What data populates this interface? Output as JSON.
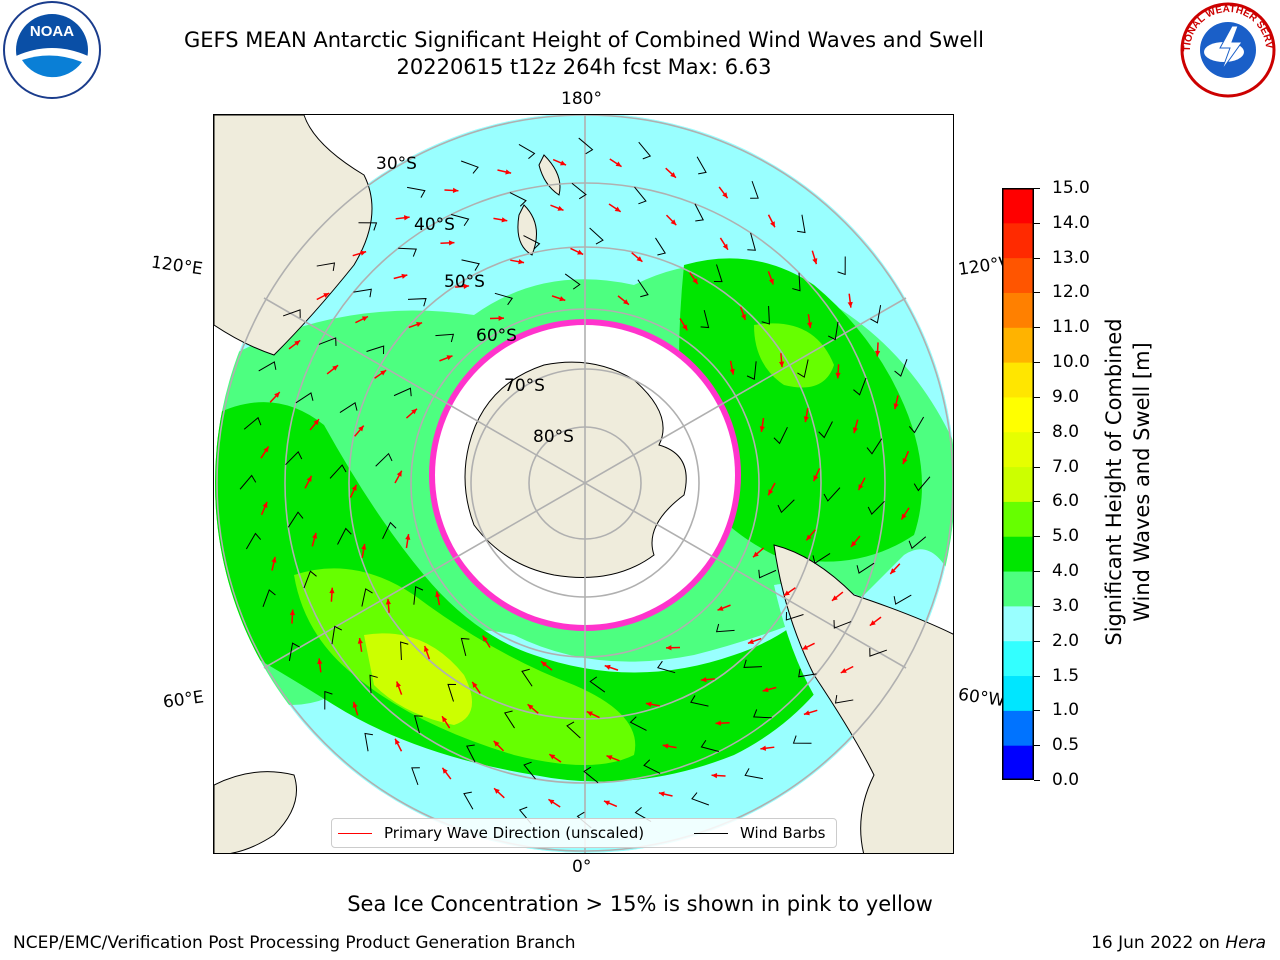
{
  "header": {
    "title_line1": "GEFS MEAN Antarctic Significant Height of Combined Wind Waves and Swell",
    "title_line2": "20220615 t12z 264h fcst   Max: 6.63"
  },
  "logos": {
    "left": "NOAA",
    "right": "NATIONAL WEATHER SERVICE"
  },
  "map": {
    "projection": "south-polar-stereographic",
    "longitude_labels": {
      "top": "180°",
      "bottom": "0°",
      "left_upper": "120°E",
      "left_lower": "60°E",
      "right_upper": "120°W",
      "right_lower": "60°W"
    },
    "latitude_labels": [
      "30°S",
      "40°S",
      "50°S",
      "60°S",
      "70°S",
      "80°S"
    ],
    "colors": {
      "land": "#efecdc",
      "ice": "#ffffff",
      "ice_edge": "#ff33cc",
      "graticule": "#b0b0b0",
      "arrow": "#ff0000",
      "barb": "#000000"
    }
  },
  "colorbar": {
    "ticks": [
      "0.0",
      "0.5",
      "1.0",
      "1.5",
      "2.0",
      "3.0",
      "4.0",
      "5.0",
      "6.0",
      "7.0",
      "8.0",
      "9.0",
      "10.0",
      "11.0",
      "12.0",
      "13.0",
      "14.0",
      "15.0"
    ],
    "colors": [
      "#0000ff",
      "#0073ff",
      "#00e6ff",
      "#33ffff",
      "#99ffff",
      "#4dff80",
      "#00e600",
      "#66ff00",
      "#ccff00",
      "#e6ff00",
      "#ffff00",
      "#ffe600",
      "#ffb300",
      "#ff8000",
      "#ff5500",
      "#ff2a00",
      "#ff0000"
    ],
    "label_line1": "Significant Height of Combined",
    "label_line2": "Wind Waves and Swell [m]"
  },
  "legend": {
    "primary_wave": "Primary Wave Direction (unscaled)",
    "wind_barbs": "Wind Barbs"
  },
  "footnote": "Sea Ice Concentration > 15% is shown in pink to yellow",
  "credit": {
    "left": "NCEP/EMC/Verification Post Processing Product Generation Branch",
    "right_prefix": "16 Jun 2022 on ",
    "right_host": "Hera"
  }
}
